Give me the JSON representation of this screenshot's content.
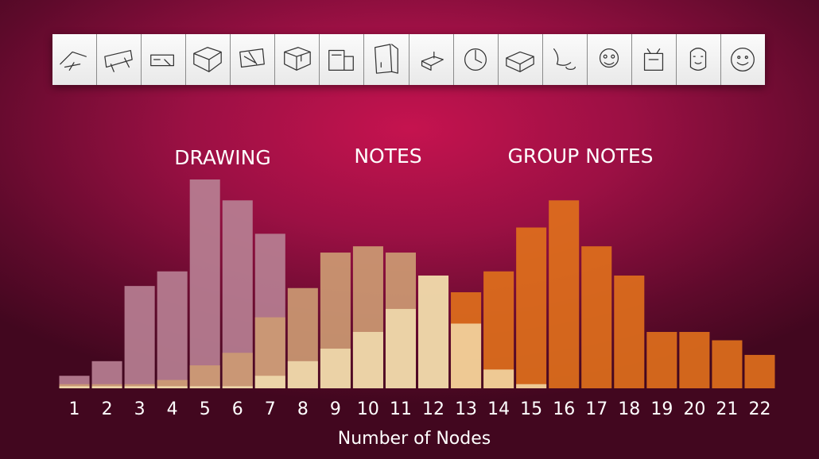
{
  "sketches": [
    {
      "icon": "sketch-icon-1"
    },
    {
      "icon": "sketch-icon-2"
    },
    {
      "icon": "sketch-icon-3"
    },
    {
      "icon": "sketch-icon-4"
    },
    {
      "icon": "sketch-icon-5"
    },
    {
      "icon": "sketch-icon-6"
    },
    {
      "icon": "sketch-icon-7"
    },
    {
      "icon": "sketch-icon-8"
    },
    {
      "icon": "sketch-icon-9"
    },
    {
      "icon": "sketch-icon-10"
    },
    {
      "icon": "sketch-icon-11"
    },
    {
      "icon": "sketch-icon-12"
    },
    {
      "icon": "sketch-icon-13"
    },
    {
      "icon": "sketch-icon-14"
    },
    {
      "icon": "sketch-icon-15"
    },
    {
      "icon": "sketch-icon-16"
    }
  ],
  "chart_data": {
    "type": "bar",
    "stacked": false,
    "overlapping": true,
    "categories": [
      "1",
      "2",
      "3",
      "4",
      "5",
      "6",
      "7",
      "8",
      "9",
      "10",
      "11",
      "12",
      "13",
      "14",
      "15",
      "16",
      "17",
      "18",
      "19",
      "20",
      "21",
      "22"
    ],
    "xlabel": "Number of Nodes",
    "ylabel": "",
    "ylim": [
      0,
      100
    ],
    "grid": false,
    "series": [
      {
        "name": "DRAWING",
        "color": "#b77f93",
        "values": [
          6,
          13,
          49,
          56,
          100,
          90,
          74,
          0,
          0,
          0,
          0,
          0,
          0,
          0,
          0,
          0,
          0,
          0,
          0,
          0,
          0,
          0
        ]
      },
      {
        "name": "NOTES",
        "color": "#cc9a73",
        "values": [
          2,
          2,
          2,
          4,
          11,
          17,
          34,
          48,
          65,
          68,
          65,
          54,
          0,
          0,
          0,
          0,
          0,
          0,
          0,
          0,
          0,
          0
        ]
      },
      {
        "name": "GROUP NOTES",
        "color": "#de6f1c",
        "values": [
          0,
          0,
          0,
          0,
          0,
          0,
          0,
          0,
          0,
          0,
          0,
          0,
          46,
          56,
          77,
          90,
          68,
          54,
          27,
          27,
          23,
          16
        ]
      }
    ],
    "highlight": [
      {
        "values": [
          1,
          1,
          1,
          1,
          1,
          1,
          6,
          13,
          19,
          27,
          38,
          54,
          31,
          9,
          2,
          0,
          0,
          0,
          0,
          0,
          0,
          0
        ]
      }
    ],
    "group_labels": [
      {
        "text": "DRAWING",
        "category": "5"
      },
      {
        "text": "NOTES",
        "category": "10"
      },
      {
        "text": "GROUP NOTES",
        "category": "16"
      }
    ]
  }
}
